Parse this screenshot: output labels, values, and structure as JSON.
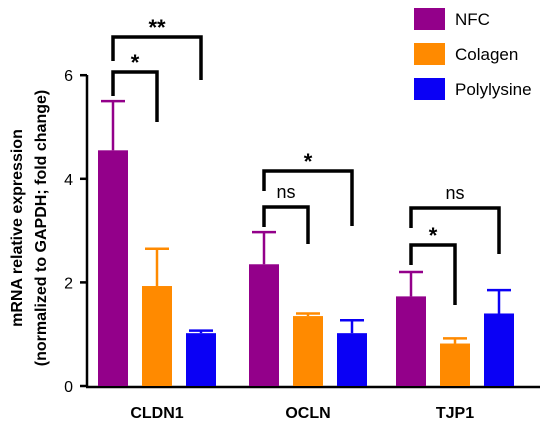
{
  "chart_data": {
    "type": "bar",
    "ylabel_line1": "mRNA relative expression",
    "ylabel_line2": "(normalized to GAPDH; fold change)",
    "ylim": [
      0,
      6
    ],
    "yticks": [
      "0",
      "2",
      "4",
      "6"
    ],
    "categories": [
      "CLDN1",
      "OCLN",
      "TJP1"
    ],
    "legend_position": "top-right",
    "series": [
      {
        "name": "NFC",
        "color": "#93008a",
        "values": [
          4.55,
          2.35,
          1.73
        ],
        "errors": [
          0.95,
          0.62,
          0.47
        ]
      },
      {
        "name": "Colagen",
        "color": "#ff8a00",
        "values": [
          1.93,
          1.35,
          0.82
        ],
        "errors": [
          0.72,
          0.05,
          0.1
        ]
      },
      {
        "name": "Polylysine",
        "color": "#0a00f5",
        "values": [
          1.02,
          1.02,
          1.4
        ],
        "errors": [
          0.05,
          0.25,
          0.45
        ]
      }
    ],
    "significance": [
      {
        "category": 0,
        "from": 0,
        "to": 2,
        "label": "**"
      },
      {
        "category": 0,
        "from": 0,
        "to": 1,
        "label": "*"
      },
      {
        "category": 1,
        "from": 0,
        "to": 2,
        "label": "*"
      },
      {
        "category": 1,
        "from": 0,
        "to": 1,
        "label": "ns"
      },
      {
        "category": 2,
        "from": 0,
        "to": 2,
        "label": "ns"
      },
      {
        "category": 2,
        "from": 0,
        "to": 1,
        "label": "*"
      }
    ]
  }
}
